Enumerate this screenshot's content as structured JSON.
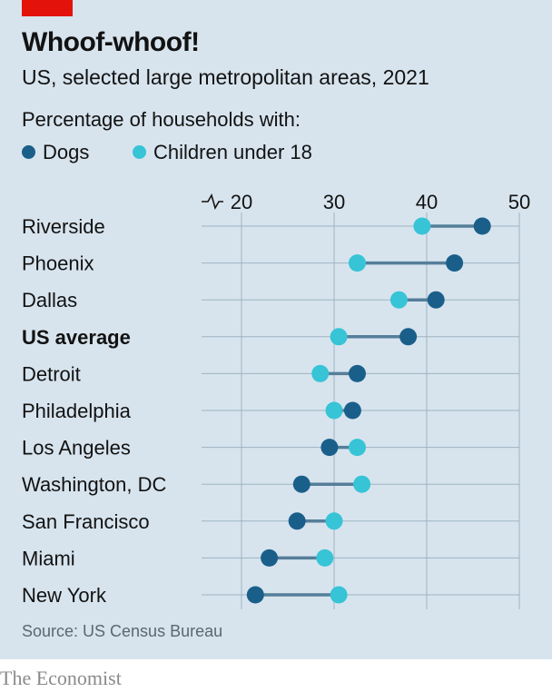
{
  "header": {
    "title": "Whoof-whoof!",
    "subtitle": "US, selected large metropolitan areas, 2021"
  },
  "legend": {
    "title": "Percentage of households with:",
    "dogs_label": "Dogs",
    "children_label": "Children under 18"
  },
  "colors": {
    "dogs": "#1a5f8a",
    "children": "#36c4d6",
    "connector": "#557e99",
    "grid": "#9fb3c2",
    "panel": "#d7e4ee",
    "accent": "#e3120b"
  },
  "chart_data": {
    "type": "dot-range",
    "x_ticks": [
      20,
      30,
      40,
      50
    ],
    "xlim": [
      20,
      50
    ],
    "axis_break": true,
    "series": [
      {
        "name": "Dogs",
        "values": [
          46,
          43,
          41,
          38,
          32.5,
          32,
          29.5,
          26.5,
          26,
          23,
          21.5
        ]
      },
      {
        "name": "Children under 18",
        "values": [
          39.5,
          32.5,
          37,
          30.5,
          28.5,
          30,
          32.5,
          33,
          30,
          29,
          30.5
        ]
      }
    ],
    "categories": [
      "Riverside",
      "Phoenix",
      "Dallas",
      "US average",
      "Detroit",
      "Philadelphia",
      "Los Angeles",
      "Washington, DC",
      "San Francisco",
      "Miami",
      "New York"
    ],
    "bold_categories": [
      "US average"
    ]
  },
  "footer": {
    "source": "Source: US Census Bureau",
    "brand": "The Economist"
  }
}
